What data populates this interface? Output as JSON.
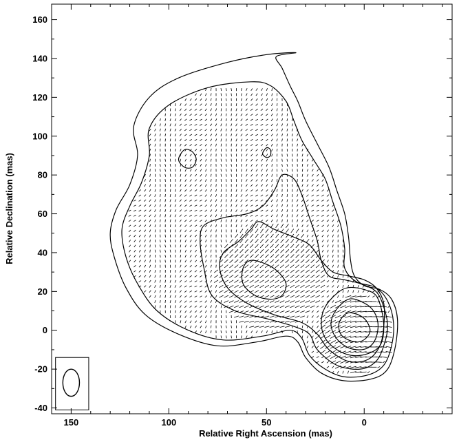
{
  "chart_data": {
    "type": "contour",
    "xlabel": "Relative Right Ascension (mas)",
    "ylabel": "Relative Declination (mas)",
    "xlim": [
      160,
      -45
    ],
    "ylim": [
      -43,
      168
    ],
    "x_ticks": [
      150,
      100,
      50,
      0
    ],
    "x_tick_labels": [
      "150",
      "100",
      "50",
      "0"
    ],
    "y_ticks": [
      -40,
      -20,
      0,
      20,
      40,
      60,
      80,
      100,
      120,
      140,
      160
    ],
    "y_tick_labels": [
      "-40",
      "-20",
      "0",
      "20",
      "40",
      "60",
      "80",
      "100",
      "120",
      "140",
      "160"
    ],
    "grid": false,
    "beam": {
      "center": [
        150,
        -27
      ],
      "major_axis": 14,
      "minor_axis": 8.5,
      "position_angle_deg": 0
    },
    "contours": [
      [
        [
          35,
          143
        ],
        [
          45,
          141
        ],
        [
          42,
          135
        ],
        [
          38,
          126
        ],
        [
          34,
          118
        ],
        [
          30,
          108
        ],
        [
          24,
          96
        ],
        [
          18,
          84
        ],
        [
          14,
          72
        ],
        [
          10,
          60
        ],
        [
          8,
          48
        ],
        [
          7,
          36
        ],
        [
          5,
          28
        ],
        [
          0,
          23
        ],
        [
          -8,
          21
        ],
        [
          -14,
          16
        ],
        [
          -17,
          6
        ],
        [
          -16,
          -8
        ],
        [
          -12,
          -20
        ],
        [
          -4,
          -25
        ],
        [
          10,
          -26
        ],
        [
          22,
          -22
        ],
        [
          30,
          -14
        ],
        [
          34,
          -6
        ],
        [
          40,
          -3
        ],
        [
          55,
          -6
        ],
        [
          75,
          -8
        ],
        [
          95,
          -2
        ],
        [
          112,
          8
        ],
        [
          122,
          22
        ],
        [
          128,
          38
        ],
        [
          130,
          50
        ],
        [
          127,
          62
        ],
        [
          120,
          75
        ],
        [
          116,
          90
        ],
        [
          118,
          105
        ],
        [
          110,
          120
        ],
        [
          95,
          130
        ],
        [
          70,
          138
        ],
        [
          50,
          142
        ],
        [
          35,
          143
        ]
      ],
      [
        [
          58,
          128
        ],
        [
          48,
          126
        ],
        [
          40,
          118
        ],
        [
          36,
          108
        ],
        [
          32,
          98
        ],
        [
          26,
          88
        ],
        [
          20,
          78
        ],
        [
          16,
          66
        ],
        [
          12,
          54
        ],
        [
          10,
          42
        ],
        [
          10,
          32
        ],
        [
          4,
          25
        ],
        [
          -6,
          22
        ],
        [
          -12,
          15
        ],
        [
          -15,
          4
        ],
        [
          -14,
          -8
        ],
        [
          -10,
          -18
        ],
        [
          -2,
          -23
        ],
        [
          10,
          -24
        ],
        [
          20,
          -20
        ],
        [
          28,
          -13
        ],
        [
          32,
          -4
        ],
        [
          38,
          0
        ],
        [
          52,
          -3
        ],
        [
          72,
          -5
        ],
        [
          90,
          0
        ],
        [
          106,
          10
        ],
        [
          116,
          24
        ],
        [
          122,
          38
        ],
        [
          124,
          52
        ],
        [
          120,
          64
        ],
        [
          114,
          76
        ],
        [
          110,
          90
        ],
        [
          110,
          104
        ],
        [
          100,
          116
        ],
        [
          80,
          125
        ],
        [
          58,
          128
        ]
      ],
      [
        [
          92,
          93
        ],
        [
          88,
          92
        ],
        [
          86,
          88
        ],
        [
          88,
          84
        ],
        [
          92,
          84
        ],
        [
          95,
          88
        ],
        [
          92,
          93
        ]
      ],
      [
        [
          50,
          94
        ],
        [
          48,
          93
        ],
        [
          48,
          90
        ],
        [
          50,
          89
        ],
        [
          52,
          91
        ],
        [
          50,
          94
        ]
      ],
      [
        [
          42,
          80
        ],
        [
          36,
          78
        ],
        [
          32,
          70
        ],
        [
          28,
          58
        ],
        [
          24,
          46
        ],
        [
          22,
          36
        ],
        [
          18,
          28
        ],
        [
          10,
          26
        ],
        [
          2,
          24
        ],
        [
          -6,
          20
        ],
        [
          -10,
          12
        ],
        [
          -12,
          2
        ],
        [
          -10,
          -8
        ],
        [
          -6,
          -16
        ],
        [
          2,
          -20
        ],
        [
          14,
          -18
        ],
        [
          24,
          -10
        ],
        [
          28,
          -2
        ],
        [
          36,
          2
        ],
        [
          50,
          6
        ],
        [
          66,
          10
        ],
        [
          78,
          18
        ],
        [
          82,
          32
        ],
        [
          84,
          46
        ],
        [
          82,
          54
        ],
        [
          72,
          58
        ],
        [
          60,
          60
        ],
        [
          52,
          64
        ],
        [
          46,
          72
        ],
        [
          42,
          80
        ]
      ],
      [
        [
          54,
          56
        ],
        [
          46,
          52
        ],
        [
          36,
          48
        ],
        [
          28,
          44
        ],
        [
          22,
          36
        ],
        [
          16,
          30
        ],
        [
          8,
          28
        ],
        [
          0,
          26
        ],
        [
          -6,
          22
        ],
        [
          -10,
          14
        ],
        [
          -10,
          2
        ],
        [
          -8,
          -8
        ],
        [
          -2,
          -15
        ],
        [
          8,
          -16
        ],
        [
          18,
          -10
        ],
        [
          24,
          -2
        ],
        [
          32,
          4
        ],
        [
          46,
          8
        ],
        [
          60,
          14
        ],
        [
          70,
          22
        ],
        [
          74,
          32
        ],
        [
          72,
          40
        ],
        [
          64,
          46
        ],
        [
          58,
          52
        ],
        [
          54,
          56
        ]
      ],
      [
        [
          58,
          36
        ],
        [
          50,
          34
        ],
        [
          44,
          30
        ],
        [
          40,
          24
        ],
        [
          42,
          18
        ],
        [
          48,
          16
        ],
        [
          56,
          18
        ],
        [
          62,
          24
        ],
        [
          62,
          32
        ],
        [
          58,
          36
        ]
      ],
      [
        [
          8,
          22
        ],
        [
          0,
          21
        ],
        [
          -6,
          18
        ],
        [
          -9,
          10
        ],
        [
          -10,
          0
        ],
        [
          -8,
          -8
        ],
        [
          -2,
          -12
        ],
        [
          6,
          -13
        ],
        [
          14,
          -10
        ],
        [
          20,
          -4
        ],
        [
          22,
          4
        ],
        [
          20,
          12
        ],
        [
          14,
          19
        ],
        [
          8,
          22
        ]
      ],
      [
        [
          8,
          16
        ],
        [
          2,
          15
        ],
        [
          -4,
          11
        ],
        [
          -7,
          4
        ],
        [
          -6,
          -4
        ],
        [
          -2,
          -9
        ],
        [
          4,
          -10
        ],
        [
          10,
          -8
        ],
        [
          15,
          -3
        ],
        [
          17,
          4
        ],
        [
          14,
          11
        ],
        [
          8,
          16
        ]
      ],
      [
        [
          8,
          9
        ],
        [
          3,
          8
        ],
        [
          -1,
          5
        ],
        [
          -3,
          0
        ],
        [
          -1,
          -4
        ],
        [
          3,
          -6
        ],
        [
          8,
          -5
        ],
        [
          12,
          -2
        ],
        [
          13,
          3
        ],
        [
          11,
          7
        ],
        [
          8,
          9
        ]
      ]
    ]
  }
}
